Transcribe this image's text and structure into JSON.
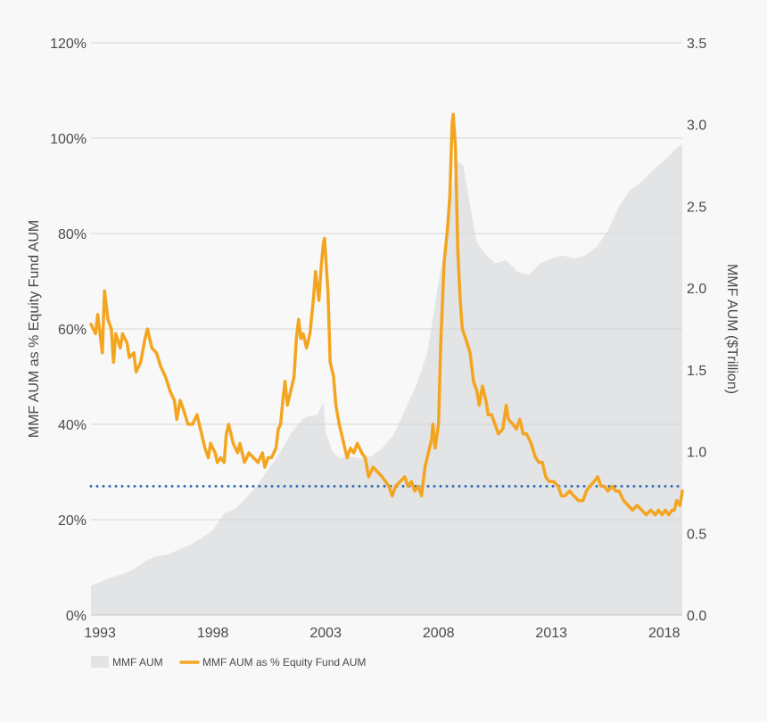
{
  "chart_data": {
    "type": "area+line",
    "title": "",
    "ylabel_left": "MMF AUM as % Equity Fund AUM",
    "ylabel_right": "MMF AUM ($Trillion)",
    "x_ticks": [
      "1993",
      "1998",
      "2003",
      "2008",
      "2013",
      "2018"
    ],
    "y_left_ticks": [
      "0%",
      "20%",
      "40%",
      "60%",
      "80%",
      "100%",
      "120%"
    ],
    "y_right_ticks": [
      "0.0",
      "0.5",
      "1.0",
      "1.5",
      "2.0",
      "2.5",
      "3.0",
      "3.5"
    ],
    "x_range": [
      1992.6,
      2018.8
    ],
    "y_left_range": [
      0,
      120
    ],
    "y_right_range": [
      0,
      3.5
    ],
    "grid": true,
    "reference_line": {
      "value": 27,
      "axis": "left",
      "style": "dotted",
      "color": "#2f6db5"
    },
    "series": [
      {
        "name": "MMF AUM",
        "kind": "area",
        "axis": "right",
        "color": "#e3e4e6",
        "points": [
          [
            1992.6,
            0.18
          ],
          [
            1993.0,
            0.2
          ],
          [
            1993.5,
            0.23
          ],
          [
            1994.0,
            0.25
          ],
          [
            1994.5,
            0.28
          ],
          [
            1995.0,
            0.33
          ],
          [
            1995.5,
            0.36
          ],
          [
            1996.0,
            0.37
          ],
          [
            1996.5,
            0.4
          ],
          [
            1997.0,
            0.43
          ],
          [
            1997.5,
            0.47
          ],
          [
            1998.0,
            0.52
          ],
          [
            1998.5,
            0.62
          ],
          [
            1999.0,
            0.65
          ],
          [
            1999.5,
            0.72
          ],
          [
            2000.0,
            0.8
          ],
          [
            2000.5,
            0.9
          ],
          [
            2001.0,
            1.0
          ],
          [
            2001.5,
            1.12
          ],
          [
            2002.0,
            1.2
          ],
          [
            2002.3,
            1.22
          ],
          [
            2002.6,
            1.22
          ],
          [
            2002.9,
            1.3
          ],
          [
            2003.0,
            1.12
          ],
          [
            2003.3,
            1.0
          ],
          [
            2003.6,
            0.96
          ],
          [
            2004.0,
            0.97
          ],
          [
            2004.5,
            0.96
          ],
          [
            2005.0,
            0.97
          ],
          [
            2005.5,
            1.02
          ],
          [
            2006.0,
            1.1
          ],
          [
            2006.5,
            1.25
          ],
          [
            2007.0,
            1.4
          ],
          [
            2007.5,
            1.6
          ],
          [
            2007.9,
            1.95
          ],
          [
            2008.2,
            2.2
          ],
          [
            2008.5,
            2.5
          ],
          [
            2008.8,
            2.78
          ],
          [
            2009.1,
            2.75
          ],
          [
            2009.4,
            2.5
          ],
          [
            2009.7,
            2.28
          ],
          [
            2010.0,
            2.22
          ],
          [
            2010.5,
            2.15
          ],
          [
            2011.0,
            2.17
          ],
          [
            2011.5,
            2.1
          ],
          [
            2012.0,
            2.08
          ],
          [
            2012.5,
            2.15
          ],
          [
            2013.0,
            2.18
          ],
          [
            2013.5,
            2.2
          ],
          [
            2014.0,
            2.18
          ],
          [
            2014.5,
            2.2
          ],
          [
            2015.0,
            2.25
          ],
          [
            2015.5,
            2.35
          ],
          [
            2016.0,
            2.5
          ],
          [
            2016.5,
            2.6
          ],
          [
            2017.0,
            2.65
          ],
          [
            2017.5,
            2.72
          ],
          [
            2018.0,
            2.78
          ],
          [
            2018.5,
            2.85
          ],
          [
            2018.8,
            2.88
          ]
        ]
      },
      {
        "name": "MMF AUM as % Equity Fund AUM",
        "kind": "line",
        "axis": "left",
        "color": "#f4a520",
        "points": [
          [
            1992.6,
            61
          ],
          [
            1992.8,
            59
          ],
          [
            1992.9,
            63
          ],
          [
            1993.1,
            55
          ],
          [
            1993.2,
            68
          ],
          [
            1993.35,
            62
          ],
          [
            1993.5,
            60
          ],
          [
            1993.6,
            53
          ],
          [
            1993.7,
            59
          ],
          [
            1993.9,
            56
          ],
          [
            1994.0,
            59
          ],
          [
            1994.2,
            57
          ],
          [
            1994.3,
            54
          ],
          [
            1994.5,
            55
          ],
          [
            1994.6,
            51
          ],
          [
            1994.8,
            53
          ],
          [
            1995.0,
            58
          ],
          [
            1995.1,
            60
          ],
          [
            1995.3,
            56
          ],
          [
            1995.5,
            55
          ],
          [
            1995.7,
            52
          ],
          [
            1995.9,
            50
          ],
          [
            1996.1,
            47
          ],
          [
            1996.3,
            45
          ],
          [
            1996.4,
            41
          ],
          [
            1996.55,
            45
          ],
          [
            1996.7,
            43
          ],
          [
            1996.9,
            40
          ],
          [
            1997.1,
            40
          ],
          [
            1997.3,
            42
          ],
          [
            1997.5,
            38
          ],
          [
            1997.65,
            35
          ],
          [
            1997.8,
            33
          ],
          [
            1997.9,
            36
          ],
          [
            1998.1,
            34
          ],
          [
            1998.2,
            32
          ],
          [
            1998.35,
            33
          ],
          [
            1998.5,
            32
          ],
          [
            1998.6,
            38
          ],
          [
            1998.7,
            40
          ],
          [
            1998.9,
            36
          ],
          [
            1999.1,
            34
          ],
          [
            1999.2,
            36
          ],
          [
            1999.4,
            32
          ],
          [
            1999.6,
            34
          ],
          [
            1999.8,
            33
          ],
          [
            2000.0,
            32
          ],
          [
            2000.2,
            34
          ],
          [
            2000.3,
            31
          ],
          [
            2000.45,
            33
          ],
          [
            2000.6,
            33
          ],
          [
            2000.8,
            35
          ],
          [
            2000.9,
            39
          ],
          [
            2001.0,
            40
          ],
          [
            2001.1,
            45
          ],
          [
            2001.2,
            49
          ],
          [
            2001.3,
            44
          ],
          [
            2001.45,
            47
          ],
          [
            2001.6,
            50
          ],
          [
            2001.7,
            58
          ],
          [
            2001.8,
            62
          ],
          [
            2001.9,
            58
          ],
          [
            2002.0,
            59
          ],
          [
            2002.15,
            56
          ],
          [
            2002.3,
            59
          ],
          [
            2002.45,
            66
          ],
          [
            2002.55,
            72
          ],
          [
            2002.7,
            66
          ],
          [
            2002.8,
            73
          ],
          [
            2002.9,
            78
          ],
          [
            2002.95,
            79
          ],
          [
            2003.1,
            68
          ],
          [
            2003.2,
            53
          ],
          [
            2003.35,
            50
          ],
          [
            2003.45,
            44
          ],
          [
            2003.6,
            40
          ],
          [
            2003.8,
            36
          ],
          [
            2003.95,
            33
          ],
          [
            2004.1,
            35
          ],
          [
            2004.25,
            34
          ],
          [
            2004.4,
            36
          ],
          [
            2004.6,
            34
          ],
          [
            2004.75,
            33
          ],
          [
            2004.9,
            29
          ],
          [
            2005.1,
            31
          ],
          [
            2005.3,
            30
          ],
          [
            2005.5,
            29
          ],
          [
            2005.65,
            28
          ],
          [
            2005.8,
            27
          ],
          [
            2005.95,
            25
          ],
          [
            2006.1,
            27
          ],
          [
            2006.3,
            28
          ],
          [
            2006.5,
            29
          ],
          [
            2006.65,
            27
          ],
          [
            2006.8,
            28
          ],
          [
            2006.95,
            26
          ],
          [
            2007.1,
            27
          ],
          [
            2007.25,
            25
          ],
          [
            2007.4,
            31
          ],
          [
            2007.55,
            34
          ],
          [
            2007.7,
            37
          ],
          [
            2007.75,
            40
          ],
          [
            2007.85,
            35
          ],
          [
            2008.0,
            40
          ],
          [
            2008.1,
            57
          ],
          [
            2008.25,
            74
          ],
          [
            2008.4,
            81
          ],
          [
            2008.5,
            88
          ],
          [
            2008.6,
            103
          ],
          [
            2008.65,
            105
          ],
          [
            2008.75,
            98
          ],
          [
            2008.85,
            77
          ],
          [
            2008.95,
            67
          ],
          [
            2009.05,
            60
          ],
          [
            2009.2,
            58
          ],
          [
            2009.4,
            55
          ],
          [
            2009.55,
            49
          ],
          [
            2009.7,
            47
          ],
          [
            2009.8,
            44
          ],
          [
            2009.95,
            48
          ],
          [
            2010.1,
            45
          ],
          [
            2010.2,
            42
          ],
          [
            2010.35,
            42
          ],
          [
            2010.5,
            40
          ],
          [
            2010.65,
            38
          ],
          [
            2010.85,
            39
          ],
          [
            2011.0,
            44
          ],
          [
            2011.1,
            41
          ],
          [
            2011.3,
            40
          ],
          [
            2011.45,
            39
          ],
          [
            2011.6,
            41
          ],
          [
            2011.75,
            38
          ],
          [
            2011.9,
            38
          ],
          [
            2012.1,
            36
          ],
          [
            2012.3,
            33
          ],
          [
            2012.45,
            32
          ],
          [
            2012.6,
            32
          ],
          [
            2012.75,
            29
          ],
          [
            2012.9,
            28
          ],
          [
            2013.1,
            28
          ],
          [
            2013.3,
            27
          ],
          [
            2013.45,
            25
          ],
          [
            2013.6,
            25
          ],
          [
            2013.8,
            26
          ],
          [
            2014.0,
            25
          ],
          [
            2014.2,
            24
          ],
          [
            2014.4,
            24
          ],
          [
            2014.55,
            26
          ],
          [
            2014.7,
            27
          ],
          [
            2014.9,
            28
          ],
          [
            2015.05,
            29
          ],
          [
            2015.2,
            27
          ],
          [
            2015.35,
            27
          ],
          [
            2015.5,
            26
          ],
          [
            2015.7,
            27
          ],
          [
            2015.85,
            26
          ],
          [
            2016.0,
            26
          ],
          [
            2016.2,
            24
          ],
          [
            2016.4,
            23
          ],
          [
            2016.6,
            22
          ],
          [
            2016.8,
            23
          ],
          [
            2017.0,
            22
          ],
          [
            2017.2,
            21
          ],
          [
            2017.4,
            22
          ],
          [
            2017.6,
            21
          ],
          [
            2017.75,
            22
          ],
          [
            2017.9,
            21
          ],
          [
            2018.05,
            22
          ],
          [
            2018.2,
            21
          ],
          [
            2018.35,
            22
          ],
          [
            2018.45,
            22
          ],
          [
            2018.55,
            24
          ],
          [
            2018.7,
            23
          ],
          [
            2018.8,
            26
          ]
        ]
      }
    ],
    "legend": {
      "placement": "bottom-left",
      "entries": [
        {
          "label": "MMF AUM",
          "swatch": "area",
          "color": "#e3e4e6"
        },
        {
          "label": "MMF AUM as % Equity Fund AUM",
          "swatch": "line",
          "color": "#f4a520"
        }
      ]
    }
  }
}
